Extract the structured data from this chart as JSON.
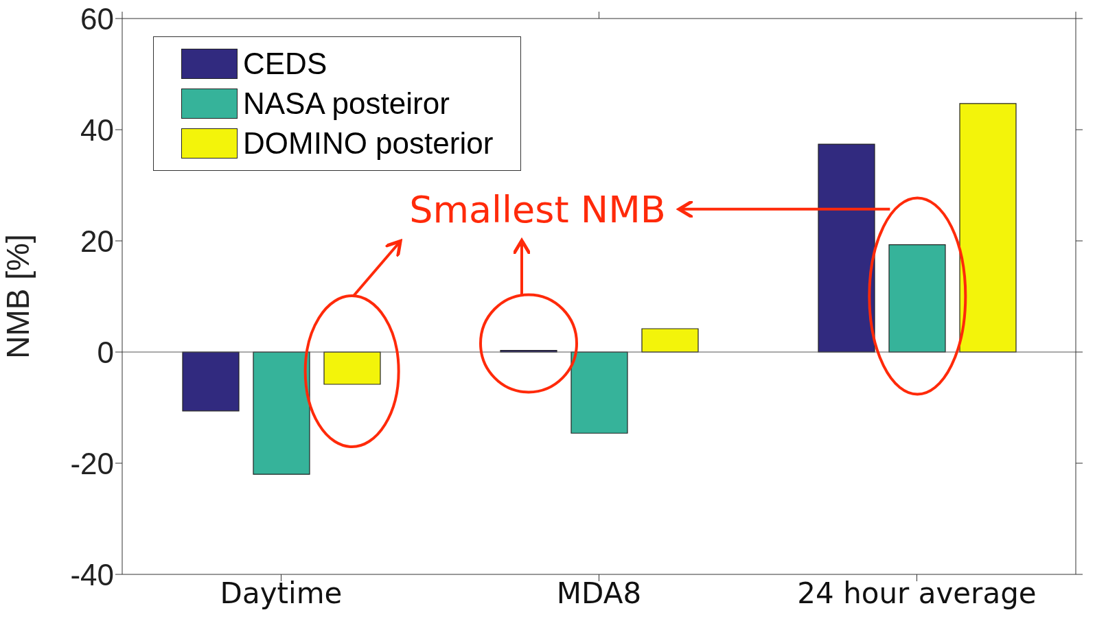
{
  "chart_data": {
    "type": "bar",
    "ylabel": "NMB [%]",
    "categories": [
      "Daytime",
      "MDA8",
      "24 hour average"
    ],
    "series": [
      {
        "name": "CEDS",
        "color": "#312a7f",
        "values": [
          -10.6,
          0.3,
          37.4
        ]
      },
      {
        "name": "NASA posteiror",
        "color": "#36b39a",
        "values": [
          -22.0,
          -14.6,
          19.3
        ]
      },
      {
        "name": "DOMINO posterior",
        "color": "#f3f40a",
        "values": [
          -5.8,
          4.2,
          44.7
        ]
      }
    ],
    "ylim": [
      -40,
      60
    ],
    "yticks": [
      -40,
      -20,
      0,
      20,
      40,
      60
    ],
    "grid": false,
    "legend": "top left",
    "ref_lines": [
      {
        "axis": "y",
        "value": 0
      }
    ],
    "annotations": [
      "Smallest NMB"
    ]
  }
}
